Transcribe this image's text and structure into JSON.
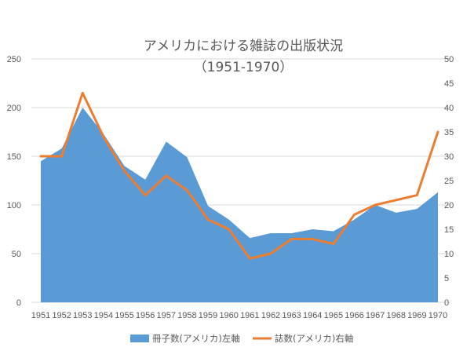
{
  "chart_data": {
    "type": "area",
    "title": "アメリカにおける雑誌の出版状況",
    "subtitle": "（1951-1970）",
    "categories": [
      "1951",
      "1952",
      "1953",
      "1954",
      "1955",
      "1956",
      "1957",
      "1958",
      "1959",
      "1960",
      "1961",
      "1962",
      "1963",
      "1964",
      "1965",
      "1966",
      "1967",
      "1968",
      "1969",
      "1970"
    ],
    "series": [
      {
        "name": "冊子数(アメリカ)左軸",
        "type": "area",
        "axis": "left",
        "color": "#5B9BD5",
        "values": [
          145,
          158,
          200,
          173,
          140,
          126,
          165,
          149,
          99,
          85,
          66,
          71,
          71,
          75,
          73,
          85,
          100,
          92,
          96,
          113
        ]
      },
      {
        "name": "誌数(アメリカ)右軸",
        "type": "line",
        "axis": "right",
        "color": "#ED7D31",
        "values": [
          30,
          30,
          43,
          34,
          27,
          22,
          26,
          23,
          17,
          15,
          9,
          10,
          13,
          13,
          12,
          18,
          20,
          21,
          22,
          35
        ]
      }
    ],
    "y_left": {
      "min": 0,
      "max": 250,
      "step": 50,
      "ticks": [
        "0",
        "50",
        "100",
        "150",
        "200",
        "250"
      ]
    },
    "y_right": {
      "min": 0,
      "max": 50,
      "step": 5,
      "ticks": [
        "0",
        "5",
        "10",
        "15",
        "20",
        "25",
        "30",
        "35",
        "40",
        "45",
        "50"
      ]
    },
    "grid": true,
    "legend_position": "bottom"
  }
}
